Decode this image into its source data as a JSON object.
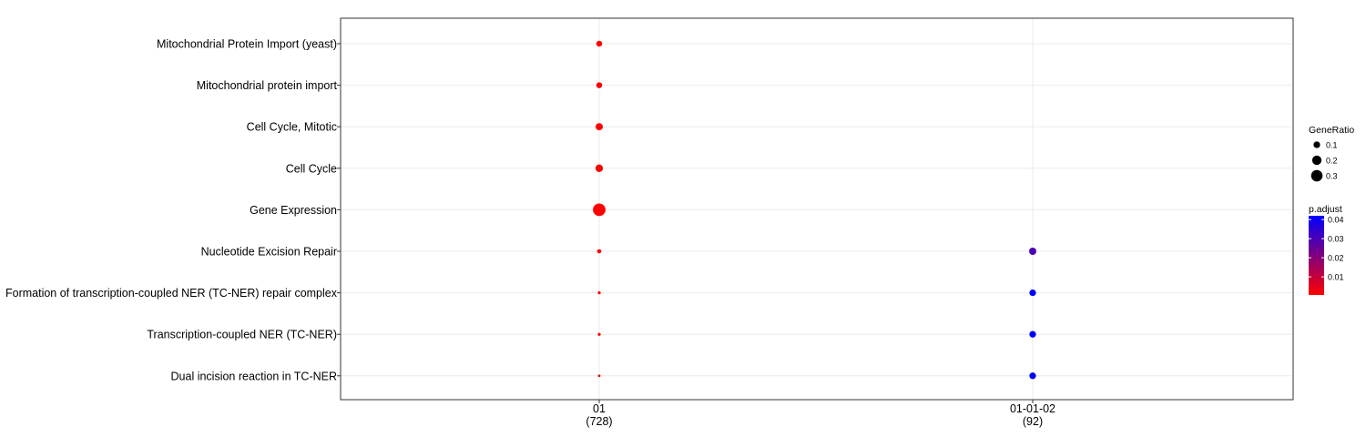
{
  "chart_data": {
    "type": "scatter",
    "title": "",
    "xlabel": "",
    "ylabel": "",
    "x_categories": [
      {
        "name": "01",
        "count_label": "(728)"
      },
      {
        "name": "01-01-02",
        "count_label": "(92)"
      }
    ],
    "y_categories": [
      "Mitochondrial Protein Import (yeast)",
      "Mitochondrial protein import",
      "Cell Cycle, Mitotic",
      "Cell Cycle",
      "Gene Expression",
      "Nucleotide Excision Repair",
      "Formation of transcription-coupled NER (TC-NER) repair complex",
      "Transcription-coupled NER (TC-NER)",
      "Dual incision reaction in TC-NER"
    ],
    "points": [
      {
        "x": "01",
        "y": "Mitochondrial Protein Import (yeast)",
        "gene_ratio": 0.08,
        "p_adjust": 0.0005
      },
      {
        "x": "01",
        "y": "Mitochondrial protein import",
        "gene_ratio": 0.08,
        "p_adjust": 0.0005
      },
      {
        "x": "01",
        "y": "Cell Cycle, Mitotic",
        "gene_ratio": 0.12,
        "p_adjust": 0.0005
      },
      {
        "x": "01",
        "y": "Cell Cycle",
        "gene_ratio": 0.13,
        "p_adjust": 0.0005
      },
      {
        "x": "01",
        "y": "Gene Expression",
        "gene_ratio": 0.36,
        "p_adjust": 0.0005
      },
      {
        "x": "01",
        "y": "Nucleotide Excision Repair",
        "gene_ratio": 0.04,
        "p_adjust": 0.0008
      },
      {
        "x": "01",
        "y": "Formation of transcription-coupled NER (TC-NER) repair complex",
        "gene_ratio": 0.02,
        "p_adjust": 0.001
      },
      {
        "x": "01",
        "y": "Transcription-coupled NER (TC-NER)",
        "gene_ratio": 0.02,
        "p_adjust": 0.001
      },
      {
        "x": "01",
        "y": "Dual incision reaction in TC-NER",
        "gene_ratio": 0.015,
        "p_adjust": 0.001
      },
      {
        "x": "01-01-02",
        "y": "Nucleotide Excision Repair",
        "gene_ratio": 0.12,
        "p_adjust": 0.03
      },
      {
        "x": "01-01-02",
        "y": "Formation of transcription-coupled NER (TC-NER) repair complex",
        "gene_ratio": 0.1,
        "p_adjust": 0.042
      },
      {
        "x": "01-01-02",
        "y": "Transcription-coupled NER (TC-NER)",
        "gene_ratio": 0.1,
        "p_adjust": 0.042
      },
      {
        "x": "01-01-02",
        "y": "Dual incision reaction in TC-NER",
        "gene_ratio": 0.1,
        "p_adjust": 0.042
      }
    ],
    "legend_size": {
      "title": "GeneRatio",
      "entries": [
        {
          "label": "0.1",
          "value": 0.1
        },
        {
          "label": "0.2",
          "value": 0.2
        },
        {
          "label": "0.3",
          "value": 0.3
        }
      ]
    },
    "legend_color": {
      "title": "p.adjust",
      "range": [
        0.0005,
        0.042
      ],
      "ticks": [
        {
          "label": "0.01",
          "value": 0.01
        },
        {
          "label": "0.02",
          "value": 0.02
        },
        {
          "label": "0.03",
          "value": 0.03
        },
        {
          "label": "0.04",
          "value": 0.04
        }
      ],
      "low_color": "#ff0000",
      "high_color": "#0000ff"
    },
    "grid": true,
    "legend_position": "right"
  }
}
